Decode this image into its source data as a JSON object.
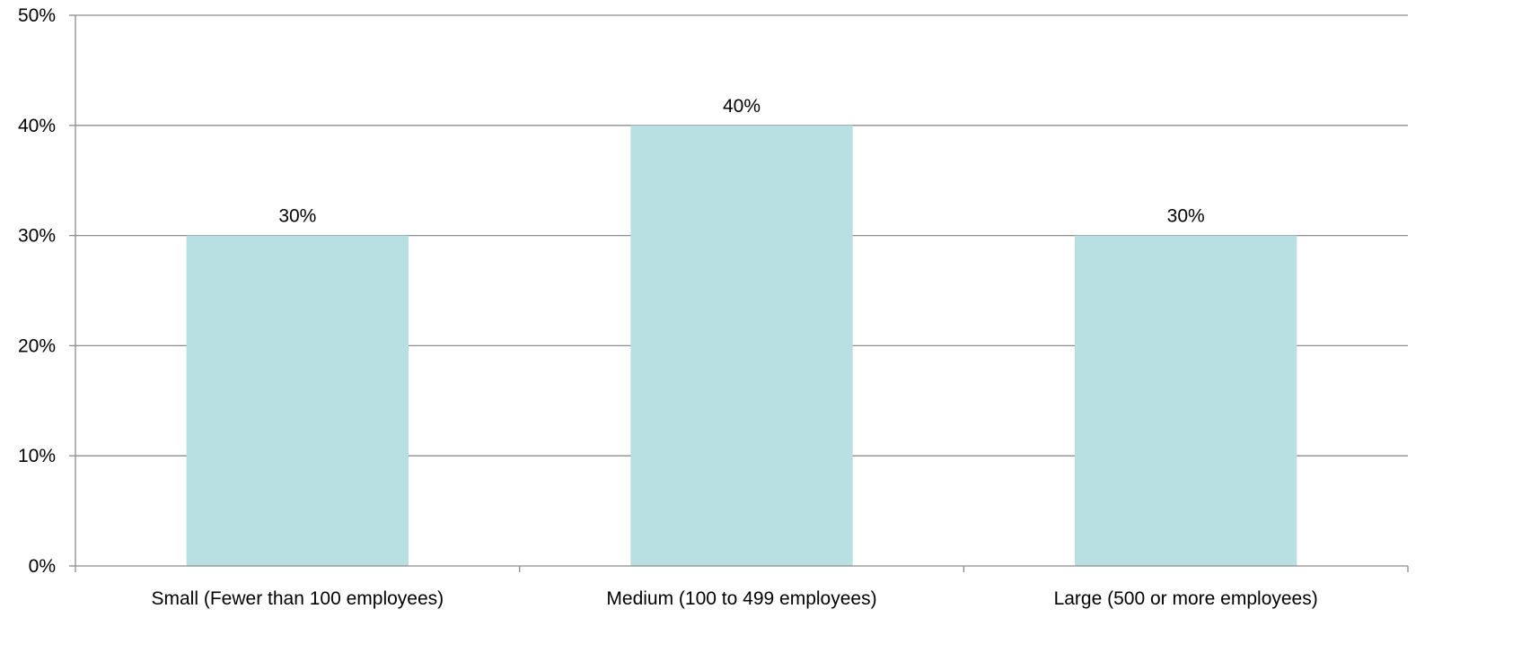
{
  "chart_data": {
    "type": "bar",
    "categories": [
      "Small (Fewer than 100 employees)",
      "Medium (100 to 499 employees)",
      "Large (500 or more employees)"
    ],
    "values": [
      30,
      40,
      30
    ],
    "data_labels": [
      "30%",
      "40%",
      "30%"
    ],
    "yticks": [
      0,
      10,
      20,
      30,
      40,
      50
    ],
    "ytick_labels": [
      "0%",
      "10%",
      "20%",
      "30%",
      "40%",
      "50%"
    ],
    "ylim": [
      0,
      50
    ],
    "grid": true,
    "legend": false,
    "bar_color": "#b8e0e3",
    "grid_color": "#8c8c8c"
  }
}
